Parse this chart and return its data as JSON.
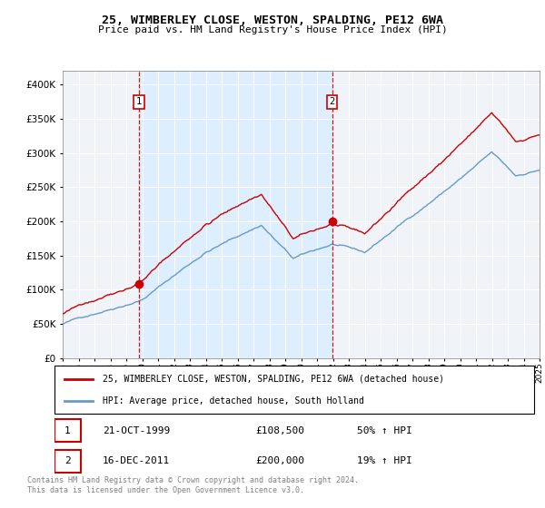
{
  "title": "25, WIMBERLEY CLOSE, WESTON, SPALDING, PE12 6WA",
  "subtitle": "Price paid vs. HM Land Registry's House Price Index (HPI)",
  "legend_line1": "25, WIMBERLEY CLOSE, WESTON, SPALDING, PE12 6WA (detached house)",
  "legend_line2": "HPI: Average price, detached house, South Holland",
  "footnote": "Contains HM Land Registry data © Crown copyright and database right 2024.\nThis data is licensed under the Open Government Licence v3.0.",
  "sale1_date": "21-OCT-1999",
  "sale1_price": "£108,500",
  "sale1_hpi": "50% ↑ HPI",
  "sale2_date": "16-DEC-2011",
  "sale2_price": "£200,000",
  "sale2_hpi": "19% ↑ HPI",
  "sale1_year": 1999.8,
  "sale1_value": 108500,
  "sale2_year": 2011.95,
  "sale2_value": 200000,
  "red_color": "#cc0000",
  "blue_color": "#6699cc",
  "highlight_color": "#ddeeff",
  "outer_bg_color": "#f0f4f8",
  "ylim_min": 0,
  "ylim_max": 420000,
  "xmin": 1995,
  "xmax": 2025
}
